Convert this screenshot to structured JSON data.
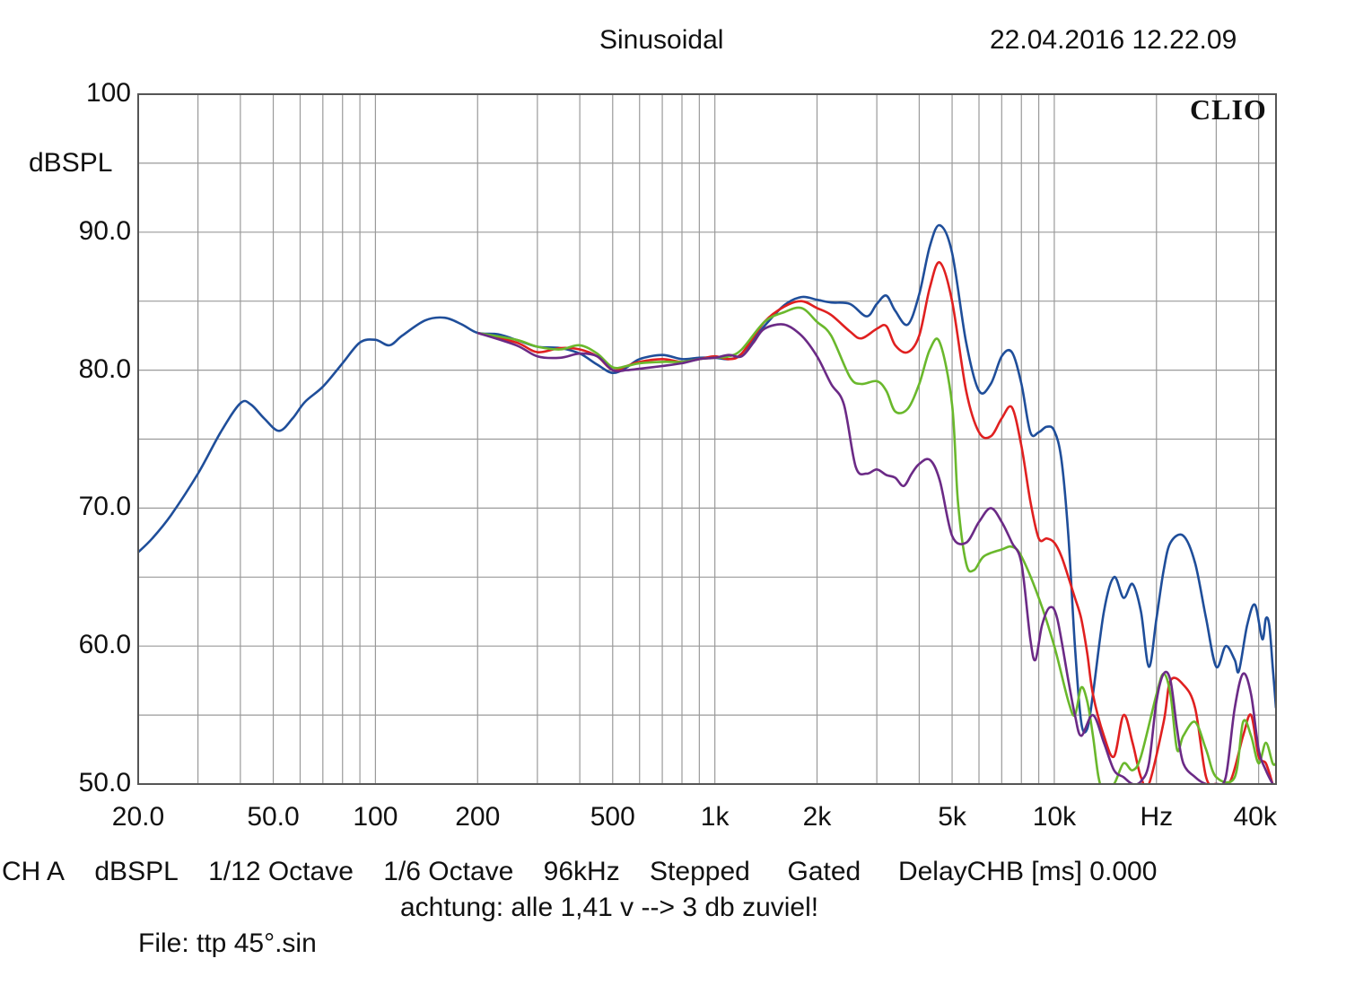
{
  "header": {
    "title": "Sinusoidal",
    "timestamp": "22.04.2016 12.22.09",
    "brand": "CLIO"
  },
  "footer": {
    "info": [
      "CH A",
      "dBSPL",
      "1/12 Octave",
      "1/6 Octave",
      "96kHz",
      "Stepped",
      "Gated",
      "DelayCHB [ms] 0.000"
    ],
    "note": "achtung: alle 1,41 v --> 3 db zuviel!",
    "file": "File: ttp 45°.sin"
  },
  "chart_data": {
    "type": "line",
    "title": "Sinusoidal",
    "xscale": "log",
    "xlim": [
      20,
      45000
    ],
    "ylim": [
      50,
      100
    ],
    "ylabel": "dBSPL",
    "xlabel": "Hz",
    "grid": true,
    "y_ticks": [
      {
        "value": 100,
        "label": "100"
      },
      {
        "value": 90,
        "label": "90.0"
      },
      {
        "value": 80,
        "label": "80.0"
      },
      {
        "value": 70,
        "label": "70.0"
      },
      {
        "value": 60,
        "label": "60.0"
      },
      {
        "value": 50,
        "label": "50.0"
      }
    ],
    "x_ticks": [
      {
        "value": 20,
        "label": "20.0"
      },
      {
        "value": 50,
        "label": "50.0"
      },
      {
        "value": 100,
        "label": "100"
      },
      {
        "value": 200,
        "label": "200"
      },
      {
        "value": 500,
        "label": "500"
      },
      {
        "value": 1000,
        "label": "1k"
      },
      {
        "value": 2000,
        "label": "2k"
      },
      {
        "value": 5000,
        "label": "5k"
      },
      {
        "value": 10000,
        "label": "10k"
      },
      {
        "value": 20000,
        "label": "Hz"
      },
      {
        "value": 40000,
        "label": "40k"
      }
    ],
    "series": [
      {
        "name": "blue",
        "color": "#1f4e9a",
        "points": [
          [
            20,
            66.8
          ],
          [
            22,
            67.8
          ],
          [
            25,
            69.5
          ],
          [
            30,
            72.5
          ],
          [
            35,
            75.5
          ],
          [
            40,
            77.6
          ],
          [
            43,
            77.5
          ],
          [
            47,
            76.5
          ],
          [
            52,
            75.6
          ],
          [
            57,
            76.5
          ],
          [
            62,
            77.7
          ],
          [
            70,
            78.8
          ],
          [
            80,
            80.5
          ],
          [
            90,
            82.0
          ],
          [
            100,
            82.2
          ],
          [
            110,
            81.8
          ],
          [
            120,
            82.5
          ],
          [
            140,
            83.6
          ],
          [
            160,
            83.8
          ],
          [
            180,
            83.3
          ],
          [
            200,
            82.7
          ],
          [
            230,
            82.6
          ],
          [
            260,
            82.2
          ],
          [
            300,
            81.7
          ],
          [
            350,
            81.6
          ],
          [
            400,
            81.2
          ],
          [
            450,
            80.4
          ],
          [
            500,
            79.8
          ],
          [
            550,
            80.2
          ],
          [
            600,
            80.8
          ],
          [
            700,
            81.1
          ],
          [
            800,
            80.8
          ],
          [
            900,
            80.9
          ],
          [
            1000,
            80.9
          ],
          [
            1100,
            80.8
          ],
          [
            1200,
            81.2
          ],
          [
            1400,
            83.2
          ],
          [
            1600,
            84.7
          ],
          [
            1800,
            85.3
          ],
          [
            2000,
            85.1
          ],
          [
            2200,
            84.9
          ],
          [
            2500,
            84.8
          ],
          [
            2800,
            83.9
          ],
          [
            3000,
            84.8
          ],
          [
            3200,
            85.4
          ],
          [
            3400,
            84.3
          ],
          [
            3700,
            83.3
          ],
          [
            4000,
            85.5
          ],
          [
            4300,
            89.0
          ],
          [
            4600,
            90.5
          ],
          [
            5000,
            88.5
          ],
          [
            5500,
            82.0
          ],
          [
            6000,
            78.5
          ],
          [
            6500,
            79.0
          ],
          [
            7000,
            81.0
          ],
          [
            7500,
            81.3
          ],
          [
            8000,
            79.0
          ],
          [
            8500,
            75.5
          ],
          [
            9000,
            75.5
          ],
          [
            9500,
            75.9
          ],
          [
            10000,
            75.6
          ],
          [
            10500,
            73.5
          ],
          [
            11000,
            68.0
          ],
          [
            11500,
            60.0
          ],
          [
            12000,
            54.5
          ],
          [
            12500,
            54.0
          ],
          [
            13000,
            56.5
          ],
          [
            14000,
            62.5
          ],
          [
            15000,
            65.0
          ],
          [
            16000,
            63.5
          ],
          [
            17000,
            64.5
          ],
          [
            18000,
            62.5
          ],
          [
            19000,
            58.5
          ],
          [
            20000,
            62.0
          ],
          [
            21000,
            65.5
          ],
          [
            22000,
            67.5
          ],
          [
            24000,
            68.0
          ],
          [
            26000,
            66.0
          ],
          [
            28000,
            62.0
          ],
          [
            30000,
            58.5
          ],
          [
            32000,
            60.0
          ],
          [
            34000,
            59.0
          ],
          [
            35000,
            58.2
          ],
          [
            37000,
            61.5
          ],
          [
            39000,
            63.0
          ],
          [
            41000,
            60.5
          ],
          [
            42000,
            62.0
          ],
          [
            43000,
            61.5
          ],
          [
            44000,
            58.5
          ],
          [
            45000,
            55.5
          ]
        ]
      },
      {
        "name": "red",
        "color": "#e02020",
        "points": [
          [
            200,
            82.7
          ],
          [
            260,
            82.0
          ],
          [
            300,
            81.3
          ],
          [
            350,
            81.6
          ],
          [
            400,
            81.5
          ],
          [
            450,
            81.0
          ],
          [
            500,
            80.0
          ],
          [
            550,
            80.3
          ],
          [
            600,
            80.6
          ],
          [
            700,
            80.8
          ],
          [
            800,
            80.6
          ],
          [
            900,
            80.8
          ],
          [
            1000,
            81.0
          ],
          [
            1100,
            80.8
          ],
          [
            1200,
            81.2
          ],
          [
            1400,
            83.5
          ],
          [
            1600,
            84.6
          ],
          [
            1800,
            85.0
          ],
          [
            2000,
            84.5
          ],
          [
            2200,
            84.0
          ],
          [
            2500,
            82.8
          ],
          [
            2700,
            82.3
          ],
          [
            3000,
            83.0
          ],
          [
            3200,
            83.2
          ],
          [
            3400,
            81.8
          ],
          [
            3700,
            81.3
          ],
          [
            4000,
            82.5
          ],
          [
            4300,
            86.0
          ],
          [
            4600,
            87.8
          ],
          [
            5000,
            85.0
          ],
          [
            5500,
            78.5
          ],
          [
            6000,
            75.5
          ],
          [
            6500,
            75.2
          ],
          [
            7000,
            76.5
          ],
          [
            7500,
            77.3
          ],
          [
            8000,
            74.5
          ],
          [
            8500,
            70.5
          ],
          [
            9000,
            67.8
          ],
          [
            9500,
            67.8
          ],
          [
            10000,
            67.5
          ],
          [
            10500,
            66.5
          ],
          [
            11000,
            65.0
          ],
          [
            11500,
            63.5
          ],
          [
            12000,
            62.0
          ],
          [
            12500,
            59.5
          ],
          [
            13000,
            56.5
          ],
          [
            14000,
            53.5
          ],
          [
            15000,
            52.0
          ],
          [
            16000,
            55.0
          ],
          [
            17000,
            53.0
          ],
          [
            18000,
            50.5
          ],
          [
            19000,
            50.0
          ],
          [
            21000,
            54.5
          ],
          [
            22000,
            57.5
          ],
          [
            24000,
            57.2
          ],
          [
            26000,
            55.5
          ],
          [
            28000,
            50.5
          ],
          [
            30000,
            50.0
          ],
          [
            33000,
            50.2
          ],
          [
            36000,
            53.5
          ],
          [
            38000,
            55.0
          ],
          [
            40000,
            52.0
          ],
          [
            42000,
            51.5
          ],
          [
            44000,
            50.0
          ]
        ]
      },
      {
        "name": "green",
        "color": "#6ab82c",
        "points": [
          [
            200,
            82.7
          ],
          [
            260,
            82.2
          ],
          [
            300,
            81.7
          ],
          [
            350,
            81.5
          ],
          [
            400,
            81.8
          ],
          [
            450,
            81.2
          ],
          [
            500,
            80.2
          ],
          [
            550,
            80.3
          ],
          [
            600,
            80.5
          ],
          [
            700,
            80.6
          ],
          [
            800,
            80.6
          ],
          [
            900,
            80.8
          ],
          [
            1000,
            80.9
          ],
          [
            1100,
            81.0
          ],
          [
            1200,
            81.5
          ],
          [
            1400,
            83.5
          ],
          [
            1600,
            84.2
          ],
          [
            1800,
            84.5
          ],
          [
            2000,
            83.5
          ],
          [
            2200,
            82.5
          ],
          [
            2500,
            79.5
          ],
          [
            2700,
            79.0
          ],
          [
            3000,
            79.2
          ],
          [
            3200,
            78.5
          ],
          [
            3400,
            77.0
          ],
          [
            3700,
            77.2
          ],
          [
            4000,
            79.0
          ],
          [
            4300,
            81.5
          ],
          [
            4600,
            82.0
          ],
          [
            5000,
            77.5
          ],
          [
            5200,
            70.5
          ],
          [
            5500,
            66.0
          ],
          [
            5800,
            65.5
          ],
          [
            6200,
            66.5
          ],
          [
            7000,
            67.0
          ],
          [
            7500,
            67.2
          ],
          [
            8000,
            66.5
          ],
          [
            9000,
            63.5
          ],
          [
            10000,
            60.0
          ],
          [
            11000,
            56.0
          ],
          [
            11500,
            55.0
          ],
          [
            12000,
            57.0
          ],
          [
            12500,
            56.0
          ],
          [
            13000,
            53.5
          ],
          [
            13500,
            50.5
          ],
          [
            14000,
            49.5
          ],
          [
            15000,
            50.0
          ],
          [
            16000,
            51.5
          ],
          [
            17000,
            51.0
          ],
          [
            18000,
            52.0
          ],
          [
            20000,
            56.5
          ],
          [
            21000,
            58.0
          ],
          [
            22000,
            56.5
          ],
          [
            23000,
            52.5
          ],
          [
            24000,
            53.5
          ],
          [
            26000,
            54.5
          ],
          [
            28000,
            52.5
          ],
          [
            30000,
            50.5
          ],
          [
            34000,
            50.5
          ],
          [
            36000,
            54.5
          ],
          [
            38000,
            53.5
          ],
          [
            40000,
            51.5
          ],
          [
            42000,
            53.0
          ],
          [
            44000,
            51.5
          ],
          [
            45000,
            51.5
          ]
        ]
      },
      {
        "name": "purple",
        "color": "#6b2a86",
        "points": [
          [
            200,
            82.7
          ],
          [
            260,
            81.8
          ],
          [
            300,
            81.0
          ],
          [
            350,
            80.9
          ],
          [
            400,
            81.2
          ],
          [
            450,
            81.0
          ],
          [
            500,
            80.0
          ],
          [
            550,
            80.0
          ],
          [
            600,
            80.1
          ],
          [
            700,
            80.3
          ],
          [
            800,
            80.5
          ],
          [
            900,
            80.8
          ],
          [
            1000,
            80.9
          ],
          [
            1100,
            81.1
          ],
          [
            1200,
            81.0
          ],
          [
            1300,
            82.0
          ],
          [
            1400,
            83.0
          ],
          [
            1600,
            83.3
          ],
          [
            1800,
            82.5
          ],
          [
            2000,
            81.0
          ],
          [
            2200,
            79.0
          ],
          [
            2400,
            77.5
          ],
          [
            2600,
            73.0
          ],
          [
            2800,
            72.5
          ],
          [
            3000,
            72.8
          ],
          [
            3200,
            72.4
          ],
          [
            3400,
            72.2
          ],
          [
            3600,
            71.6
          ],
          [
            3800,
            72.5
          ],
          [
            4000,
            73.2
          ],
          [
            4300,
            73.5
          ],
          [
            4600,
            72.0
          ],
          [
            5000,
            68.0
          ],
          [
            5500,
            67.5
          ],
          [
            6000,
            69.0
          ],
          [
            6500,
            70.0
          ],
          [
            7000,
            69.0
          ],
          [
            7500,
            67.5
          ],
          [
            8000,
            66.0
          ],
          [
            8500,
            60.5
          ],
          [
            8800,
            59.0
          ],
          [
            9200,
            61.5
          ],
          [
            9700,
            62.8
          ],
          [
            10200,
            62.0
          ],
          [
            11000,
            57.5
          ],
          [
            11500,
            55.0
          ],
          [
            12000,
            53.5
          ],
          [
            13000,
            55.0
          ],
          [
            14000,
            53.0
          ],
          [
            15000,
            51.0
          ],
          [
            16000,
            50.5
          ],
          [
            17000,
            50.0
          ],
          [
            18000,
            50.2
          ],
          [
            19000,
            51.5
          ],
          [
            20000,
            56.0
          ],
          [
            21000,
            58.0
          ],
          [
            22000,
            57.5
          ],
          [
            23000,
            54.0
          ],
          [
            24000,
            51.5
          ],
          [
            26000,
            50.5
          ],
          [
            28000,
            50.0
          ],
          [
            30000,
            50.0
          ],
          [
            32000,
            50.5
          ],
          [
            34000,
            55.5
          ],
          [
            36000,
            58.0
          ],
          [
            38000,
            56.5
          ],
          [
            40000,
            52.5
          ],
          [
            42000,
            51.0
          ],
          [
            44000,
            50.0
          ]
        ]
      }
    ]
  }
}
